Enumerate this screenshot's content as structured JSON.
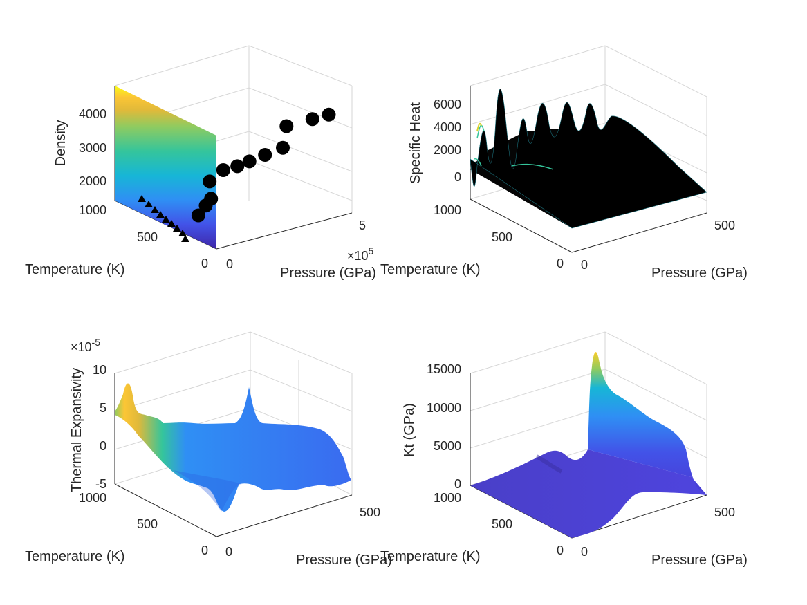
{
  "colors": {
    "axis": "#262626",
    "grid": "#d6d6d6",
    "colormap": [
      "#3e26a8",
      "#4253e8",
      "#2f8ff4",
      "#17b6d6",
      "#35c59b",
      "#8fcb60",
      "#e0b93a",
      "#fcc635",
      "#f9fb15"
    ],
    "markers": "#000000"
  },
  "chart_data": [
    {
      "id": "density",
      "type": "surface+scatter3d",
      "xlabel": "Pressure (GPa)",
      "ylabel": "Temperature (K)",
      "zlabel": "Density",
      "xticks": [
        "0",
        "5"
      ],
      "x_exponent": "×10",
      "x_exponent_power": "5",
      "yticks": [
        "0",
        "500"
      ],
      "zticks": [
        "1000",
        "2000",
        "3000",
        "4000"
      ],
      "xlim": [
        0,
        600000
      ],
      "ylim": [
        0,
        1000
      ],
      "zlim": [
        1000,
        5000
      ],
      "surface": {
        "description_free": true,
        "pressure": 0,
        "temperature": [
          0,
          1000
        ],
        "z_range": [
          1000,
          4900
        ],
        "colormap": "parula"
      },
      "scatter_points": [
        {
          "p": 10000,
          "t": 200,
          "z": 1600
        },
        {
          "p": 20000,
          "t": 150,
          "z": 1900
        },
        {
          "p": 30000,
          "t": 120,
          "z": 2100
        },
        {
          "p": 60000,
          "t": 200,
          "z": 2400
        },
        {
          "p": 120000,
          "t": 200,
          "z": 2600
        },
        {
          "p": 160000,
          "t": 150,
          "z": 2700
        },
        {
          "p": 200000,
          "t": 120,
          "z": 2800
        },
        {
          "p": 260000,
          "t": 100,
          "z": 2900
        },
        {
          "p": 330000,
          "t": 80,
          "z": 3000
        },
        {
          "p": 400000,
          "t": 200,
          "z": 3300
        },
        {
          "p": 470000,
          "t": 100,
          "z": 3500
        },
        {
          "p": 520000,
          "t": 50,
          "z": 3600
        }
      ]
    },
    {
      "id": "specific_heat",
      "type": "surface3d",
      "xlabel": "Pressure (GPa)",
      "ylabel": "Temperature (K)",
      "zlabel": "Specific Heat",
      "xticks": [
        "0",
        "500"
      ],
      "yticks": [
        "0",
        "500",
        "1000"
      ],
      "zticks": [
        "0",
        "2000",
        "4000",
        "6000"
      ],
      "xlim": [
        0,
        600
      ],
      "ylim": [
        0,
        1000
      ],
      "zlim": [
        -1000,
        7000
      ],
      "edgecolor": "#000000",
      "peak_value": 6900
    },
    {
      "id": "thermal_expansivity",
      "type": "surface3d",
      "xlabel": "Pressure (GPa)",
      "ylabel": "Temperature (K)",
      "zlabel": "Thermal Expansivity",
      "xticks": [
        "0",
        "500"
      ],
      "yticks": [
        "0",
        "500",
        "1000"
      ],
      "zticks": [
        "-5",
        "0",
        "5",
        "10"
      ],
      "z_exponent": "×10",
      "z_exponent_power": "-5",
      "xlim": [
        0,
        600
      ],
      "ylim": [
        0,
        1000
      ],
      "zlim": [
        -5e-05,
        0.0001
      ],
      "peak_value": 8e-05
    },
    {
      "id": "kt",
      "type": "surface3d",
      "xlabel": "Pressure (GPa)",
      "ylabel": "Temperature (K)",
      "zlabel": "Kt (GPa)",
      "xticks": [
        "0",
        "500"
      ],
      "yticks": [
        "0",
        "500",
        "1000"
      ],
      "zticks": [
        "0",
        "5000",
        "10000",
        "15000"
      ],
      "xlim": [
        0,
        600
      ],
      "ylim": [
        0,
        1000
      ],
      "zlim": [
        0,
        17000
      ],
      "peak_value": 17000
    }
  ]
}
